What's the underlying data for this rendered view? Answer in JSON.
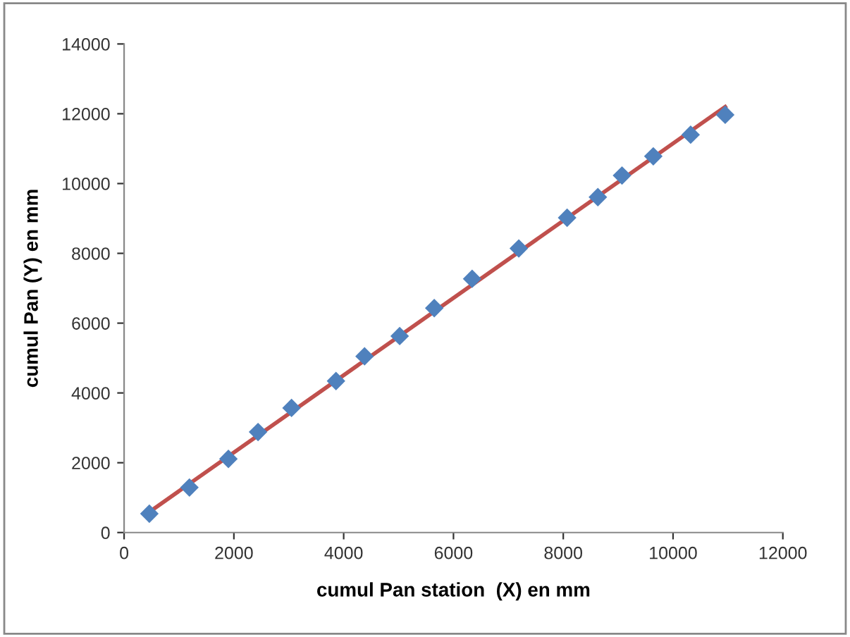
{
  "chart_data": {
    "type": "scatter",
    "xlabel": "cumul Pan station  (X) en mm",
    "ylabel": "cumul Pan (Y) en mm",
    "xlim": [
      0,
      12000
    ],
    "xticks": [
      0,
      2000,
      4000,
      6000,
      8000,
      10000,
      12000
    ],
    "ylim": [
      0,
      14000
    ],
    "yticks": [
      0,
      2000,
      4000,
      6000,
      8000,
      10000,
      12000,
      14000
    ],
    "grid": false,
    "series": [
      {
        "marker": "diamond",
        "color": "#4f81bd",
        "x": [
          460,
          1190,
          1900,
          2440,
          3050,
          3860,
          4380,
          5020,
          5650,
          6340,
          7190,
          8070,
          8630,
          9070,
          9640,
          10320,
          10950
        ],
        "values": [
          540,
          1290,
          2110,
          2880,
          3570,
          4340,
          5050,
          5630,
          6430,
          7270,
          8140,
          9020,
          9610,
          10230,
          10780,
          11400,
          11970
        ]
      },
      {
        "type": "line",
        "marker": "none",
        "color": "#c0504d",
        "x": [
          460,
          10950
        ],
        "values": [
          590,
          12200
        ]
      }
    ]
  }
}
